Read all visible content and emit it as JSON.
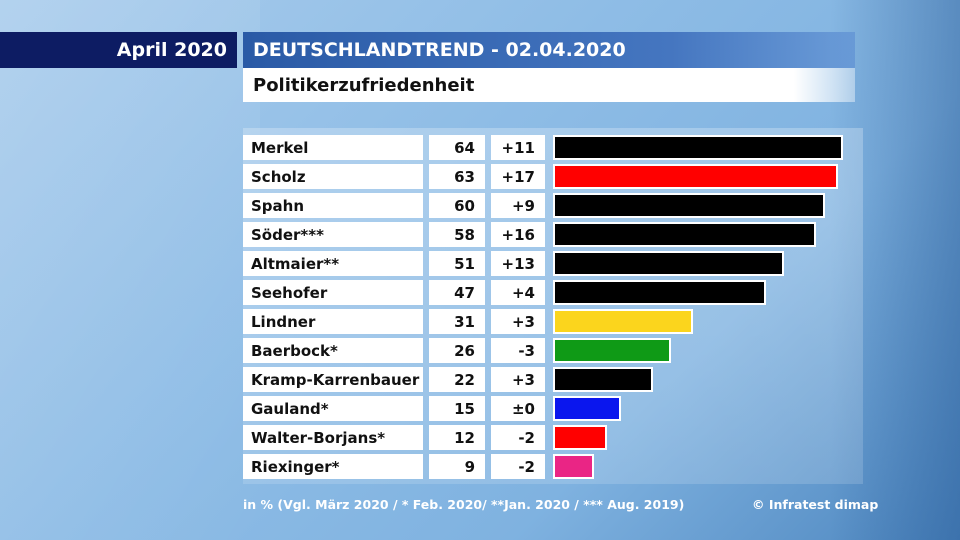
{
  "header": {
    "date": "April 2020",
    "title": "DEUTSCHLANDTREND - 02.04.2020",
    "subtitle": "Politikerzufriedenheit"
  },
  "chart_data": {
    "type": "bar",
    "orientation": "horizontal",
    "title": "Politikerzufriedenheit",
    "unit": "in %",
    "xlim": [
      0,
      64
    ],
    "categories": [
      "Merkel",
      "Scholz",
      "Spahn",
      "Söder***",
      "Altmaier**",
      "Seehofer",
      "Lindner",
      "Baerbock*",
      "Kramp-Karrenbauer",
      "Gauland*",
      "Walter-Borjans*",
      "Riexinger*"
    ],
    "values": [
      64,
      63,
      60,
      58,
      51,
      47,
      31,
      26,
      22,
      15,
      12,
      9
    ],
    "changes": [
      "+11",
      "+17",
      "+9",
      "+16",
      "+13",
      "+4",
      "+3",
      "-3",
      "+3",
      "±0",
      "-2",
      "-2"
    ],
    "bar_colors": [
      "#000000",
      "#ff0000",
      "#000000",
      "#000000",
      "#000000",
      "#000000",
      "#fbd51d",
      "#0f9a16",
      "#000000",
      "#0a16ee",
      "#ff0000",
      "#ea2585"
    ]
  },
  "footer": {
    "note": "in % (Vgl. März 2020 / * Feb. 2020/ **Jan. 2020 / *** Aug. 2019)",
    "source": "© Infratest dimap"
  }
}
